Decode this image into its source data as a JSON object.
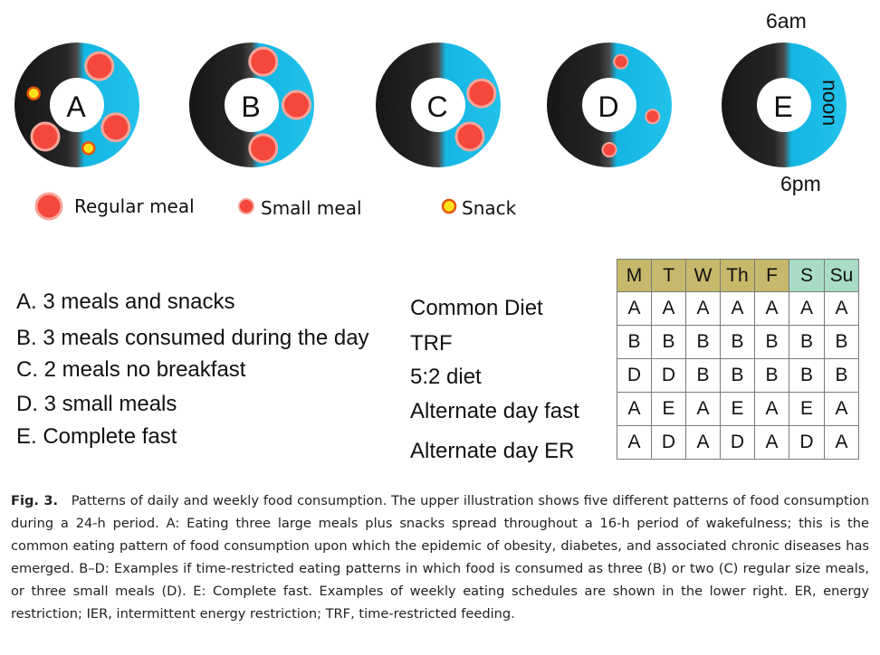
{
  "rings": [
    {
      "label": "A",
      "meals": [
        {
          "type": "regular",
          "clock_hour": 1
        },
        {
          "type": "regular",
          "clock_hour": 4
        },
        {
          "type": "regular",
          "clock_hour": 7.5
        },
        {
          "type": "snack",
          "clock_hour": 5.5
        },
        {
          "type": "snack",
          "clock_hour": 9.5
        }
      ]
    },
    {
      "label": "B",
      "meals": [
        {
          "type": "regular",
          "clock_hour": 0.5
        },
        {
          "type": "regular",
          "clock_hour": 3
        },
        {
          "type": "regular",
          "clock_hour": 5.5
        }
      ]
    },
    {
      "label": "C",
      "meals": [
        {
          "type": "regular",
          "clock_hour": 2.5
        },
        {
          "type": "regular",
          "clock_hour": 4.5
        }
      ]
    },
    {
      "label": "D",
      "meals": [
        {
          "type": "small",
          "clock_hour": 0.5
        },
        {
          "type": "small",
          "clock_hour": 3.5
        },
        {
          "type": "small",
          "clock_hour": 6
        }
      ]
    },
    {
      "label": "E",
      "meals": []
    }
  ],
  "clock_labels": {
    "top": "6am",
    "right": "noon",
    "bottom": "6pm"
  },
  "legend": {
    "regular": "Regular meal",
    "small": "Small meal",
    "snack": "Snack"
  },
  "patterns": [
    "A. 3 meals and snacks",
    "B. 3 meals consumed during the day",
    "C. 2 meals no breakfast",
    "D.  3 small meals",
    "E.  Complete fast"
  ],
  "schedule": {
    "days": [
      "M",
      "T",
      "W",
      "Th",
      "F",
      "S",
      "Su"
    ],
    "rows": [
      {
        "name": "Common Diet",
        "values": [
          "A",
          "A",
          "A",
          "A",
          "A",
          "A",
          "A"
        ]
      },
      {
        "name": "TRF",
        "values": [
          "B",
          "B",
          "B",
          "B",
          "B",
          "B",
          "B"
        ]
      },
      {
        "name": "5:2 diet",
        "values": [
          "D",
          "D",
          "B",
          "B",
          "B",
          "B",
          "B"
        ]
      },
      {
        "name": "Alternate day fast",
        "values": [
          "A",
          "E",
          "A",
          "E",
          "A",
          "E",
          "A"
        ]
      },
      {
        "name": "Alternate day ER",
        "values": [
          "A",
          "D",
          "A",
          "D",
          "A",
          "D",
          "A"
        ]
      }
    ]
  },
  "caption": {
    "lead": "Fig. 3.",
    "text": "Patterns of daily and weekly food consumption. The upper illustration shows five different patterns of food consumption during a 24-h period. A: Eating three large meals plus snacks spread throughout a 16-h period of wakefulness; this is the common eating pattern of food consumption upon which the epidemic of obesity, diabetes, and associated chronic diseases has emerged. B–D: Examples if time-restricted eating patterns in which food is consumed as three (B) or two (C) regular size meals, or three small meals (D). E: Complete fast. Examples of weekly eating schedules are shown in the lower right. ER, energy restriction; IER, intermittent energy restriction; TRF, time-restricted feeding."
  },
  "colors": {
    "ring_day": "#16b9e4",
    "ring_night": "#1c1c1c",
    "meal_fill": "#f5473c",
    "meal_edge": "#f7a59a",
    "snack_fill": "#ffe21c",
    "snack_edge": "#e4540a",
    "weekday_header": "#c6b96b",
    "weekend_header": "#a8dcc5"
  }
}
